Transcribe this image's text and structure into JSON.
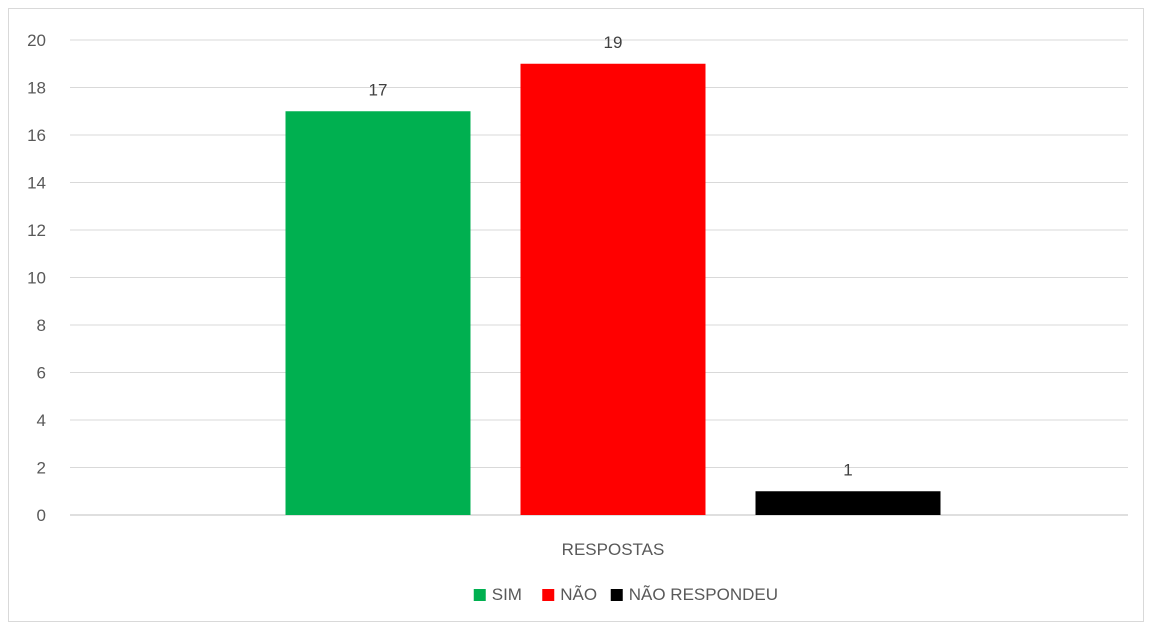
{
  "chart_data": {
    "type": "bar",
    "categories": [
      "RESPOSTAS"
    ],
    "series": [
      {
        "name": "SIM",
        "values": [
          17
        ],
        "color": "#00b050"
      },
      {
        "name": "NÃO",
        "values": [
          19
        ],
        "color": "#ff0000"
      },
      {
        "name": "NÃO RESPONDEU",
        "values": [
          1
        ],
        "color": "#000000"
      }
    ],
    "ylim": [
      0,
      20
    ],
    "yticks": [
      0,
      2,
      4,
      6,
      8,
      10,
      12,
      14,
      16,
      18,
      20
    ],
    "title": "",
    "xlabel": "",
    "ylabel": "",
    "grid": true,
    "legend": "bottom",
    "data_labels": true
  }
}
